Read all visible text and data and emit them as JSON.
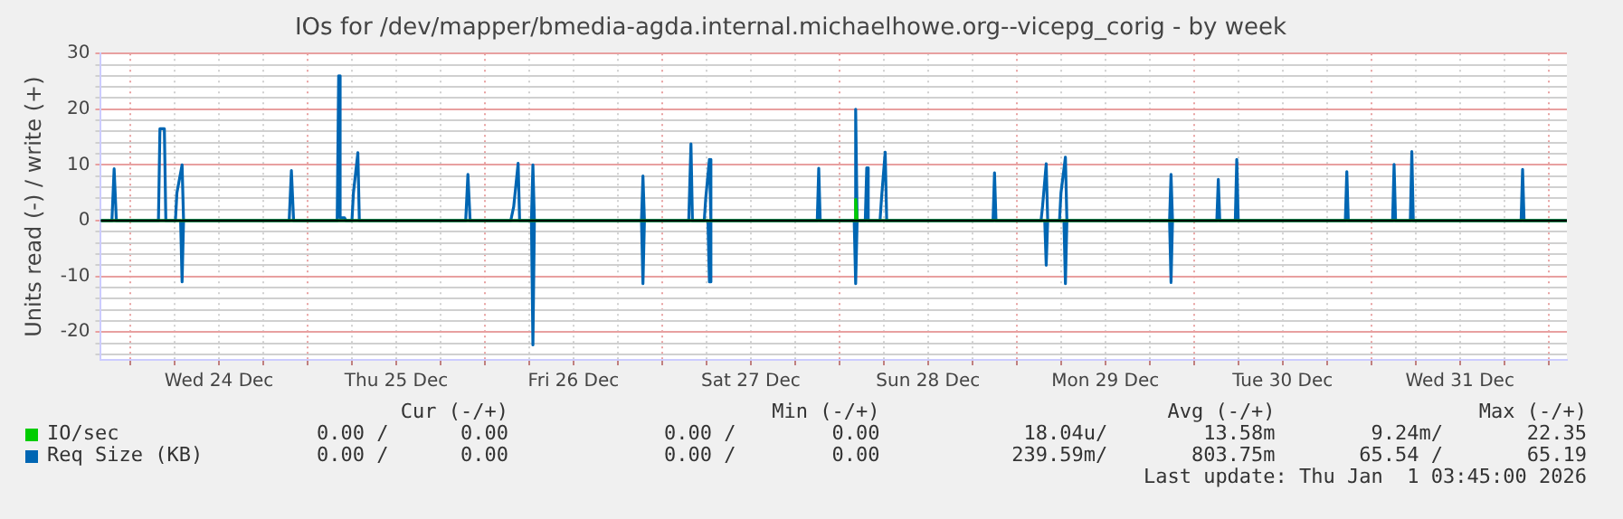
{
  "chart_data": {
    "type": "line",
    "title": "IOs for /dev/mapper/bmedia-agda.internal.michaelhowe.org--vicepg_corig - by week",
    "ylabel": "Units read (-) / write (+)",
    "xlim": [
      "2025-12-23T20:00",
      "2026-01-01T02:30"
    ],
    "xticks": [
      {
        "value": "2025-12-24T00:00",
        "label": null
      },
      {
        "value": "2025-12-24T06:00",
        "label": null
      },
      {
        "value": "2025-12-24T12:00",
        "label": "Wed 24 Dec"
      },
      {
        "value": "2025-12-24T18:00",
        "label": null
      },
      {
        "value": "2025-12-25T00:00",
        "label": null
      },
      {
        "value": "2025-12-25T06:00",
        "label": null
      },
      {
        "value": "2025-12-25T12:00",
        "label": "Thu 25 Dec"
      },
      {
        "value": "2025-12-25T18:00",
        "label": null
      },
      {
        "value": "2025-12-26T00:00",
        "label": null
      },
      {
        "value": "2025-12-26T06:00",
        "label": null
      },
      {
        "value": "2025-12-26T12:00",
        "label": "Fri 26 Dec"
      },
      {
        "value": "2025-12-26T18:00",
        "label": null
      },
      {
        "value": "2025-12-27T00:00",
        "label": null
      },
      {
        "value": "2025-12-27T06:00",
        "label": null
      },
      {
        "value": "2025-12-27T12:00",
        "label": "Sat 27 Dec"
      },
      {
        "value": "2025-12-27T18:00",
        "label": null
      },
      {
        "value": "2025-12-28T00:00",
        "label": null
      },
      {
        "value": "2025-12-28T06:00",
        "label": null
      },
      {
        "value": "2025-12-28T12:00",
        "label": "Sun 28 Dec"
      },
      {
        "value": "2025-12-28T18:00",
        "label": null
      },
      {
        "value": "2025-12-29T00:00",
        "label": null
      },
      {
        "value": "2025-12-29T06:00",
        "label": null
      },
      {
        "value": "2025-12-29T12:00",
        "label": "Mon 29 Dec"
      },
      {
        "value": "2025-12-29T18:00",
        "label": null
      },
      {
        "value": "2025-12-30T00:00",
        "label": null
      },
      {
        "value": "2025-12-30T06:00",
        "label": null
      },
      {
        "value": "2025-12-30T12:00",
        "label": "Tue 30 Dec"
      },
      {
        "value": "2025-12-30T18:00",
        "label": null
      },
      {
        "value": "2025-12-31T00:00",
        "label": null
      },
      {
        "value": "2025-12-31T06:00",
        "label": null
      },
      {
        "value": "2025-12-31T12:00",
        "label": "Wed 31 Dec"
      },
      {
        "value": "2025-12-31T18:00",
        "label": null
      },
      {
        "value": "2026-01-01T00:00",
        "label": null
      }
    ],
    "ylim": [
      -25,
      30
    ],
    "yticks": [
      {
        "value": -24,
        "label": null
      },
      {
        "value": -22,
        "label": null
      },
      -20,
      {
        "value": -18,
        "label": null
      },
      {
        "value": -16,
        "label": null
      },
      {
        "value": -14,
        "label": null
      },
      {
        "value": -12,
        "label": null
      },
      -10,
      {
        "value": -8,
        "label": null
      },
      {
        "value": -6,
        "label": null
      },
      {
        "value": -4,
        "label": null
      },
      {
        "value": -2,
        "label": null
      },
      0,
      {
        "value": 2,
        "label": null
      },
      {
        "value": 4,
        "label": null
      },
      {
        "value": 6,
        "label": null
      },
      {
        "value": 8,
        "label": null
      },
      10,
      {
        "value": 12,
        "label": null
      },
      {
        "value": 14,
        "label": null
      },
      {
        "value": 16,
        "label": null
      },
      {
        "value": 18,
        "label": null
      },
      20,
      {
        "value": 22,
        "label": null
      },
      {
        "value": 24,
        "label": null
      },
      {
        "value": 26,
        "label": null
      },
      {
        "value": 28,
        "label": null
      },
      30
    ],
    "grid": true,
    "legend": "bottom",
    "marker": "none",
    "line_style": "solid",
    "ref_lines": [
      {
        "axis": "y",
        "value": 0,
        "color": "#000000"
      }
    ],
    "series": [
      {
        "name": "IO/sec",
        "color": "#00cc00",
        "x": [
          "2025-12-23T20:00",
          "2025-12-28T02:00",
          "2025-12-28T02:12",
          "2025-12-28T02:24",
          "2026-01-01T02:30"
        ],
        "values": [
          0,
          0,
          3.8,
          0,
          0
        ]
      },
      {
        "name": "Req Size (KB)",
        "color": "#0066b3",
        "x": [
          "2025-12-23T20:00",
          "2025-12-23T21:30",
          "2025-12-23T21:48",
          "2025-12-23T22:06",
          "2025-12-24T03:48",
          "2025-12-24T04:00",
          "2025-12-24T04:36",
          "2025-12-24T04:48",
          "2025-12-24T06:06",
          "2025-12-24T06:18",
          "2025-12-24T07:00",
          "2025-12-24T07:12",
          "2025-12-24T21:30",
          "2025-12-24T21:48",
          "2025-12-24T22:06",
          "2025-12-25T04:00",
          "2025-12-25T04:12",
          "2025-12-25T04:24",
          "2025-12-25T05:00",
          "2025-12-25T05:12",
          "2025-12-25T06:00",
          "2025-12-25T06:12",
          "2025-12-25T06:48",
          "2025-12-25T07:00",
          "2025-12-25T21:24",
          "2025-12-25T21:42",
          "2025-12-25T22:00",
          "2025-12-26T03:30",
          "2025-12-26T03:54",
          "2025-12-26T04:30",
          "2025-12-26T04:42",
          "2025-12-26T06:18",
          "2025-12-26T06:30",
          "2025-12-26T06:42",
          "2025-12-26T21:12",
          "2025-12-26T21:24",
          "2025-12-26T21:36",
          "2025-12-27T03:36",
          "2025-12-27T03:54",
          "2025-12-27T04:06",
          "2025-12-27T05:42",
          "2025-12-27T05:54",
          "2025-12-27T06:24",
          "2025-12-27T06:36",
          "2025-12-27T21:00",
          "2025-12-27T21:12",
          "2025-12-27T21:24",
          "2025-12-28T02:00",
          "2025-12-28T02:12",
          "2025-12-28T02:24",
          "2025-12-28T03:30",
          "2025-12-28T03:42",
          "2025-12-28T03:54",
          "2025-12-28T05:30",
          "2025-12-28T05:42",
          "2025-12-28T06:12",
          "2025-12-28T06:24",
          "2025-12-28T20:48",
          "2025-12-28T21:00",
          "2025-12-28T21:12",
          "2025-12-29T03:18",
          "2025-12-29T03:30",
          "2025-12-29T04:00",
          "2025-12-29T04:12",
          "2025-12-29T05:48",
          "2025-12-29T06:00",
          "2025-12-29T06:36",
          "2025-12-29T06:48",
          "2025-12-29T20:42",
          "2025-12-29T20:54",
          "2025-12-29T21:06",
          "2025-12-30T03:06",
          "2025-12-30T03:18",
          "2025-12-30T03:30",
          "2025-12-30T05:36",
          "2025-12-30T05:48",
          "2025-12-30T06:00",
          "2025-12-30T20:30",
          "2025-12-30T20:42",
          "2025-12-30T20:54",
          "2025-12-31T02:54",
          "2025-12-31T03:06",
          "2025-12-31T03:18",
          "2025-12-31T05:18",
          "2025-12-31T05:30",
          "2025-12-31T05:42",
          "2025-12-31T20:18",
          "2025-12-31T20:30",
          "2025-12-31T20:42",
          "2026-01-01T02:30"
        ],
        "values": [
          0,
          0,
          9.3,
          0,
          0,
          16.5,
          16.5,
          0,
          0,
          5,
          10,
          0,
          0,
          9,
          0,
          0,
          26,
          0.5,
          0.5,
          0,
          0,
          5,
          12.2,
          0,
          0,
          8.3,
          0,
          0,
          2.5,
          10.3,
          0,
          0,
          10,
          0,
          0,
          8,
          0,
          0,
          13.8,
          0,
          0,
          4,
          11,
          0,
          0,
          9.4,
          0,
          0,
          20,
          0,
          0,
          9.5,
          0,
          0,
          4,
          12.3,
          0,
          0,
          8.6,
          0,
          0,
          2.5,
          10.2,
          0,
          0,
          5,
          11.4,
          0,
          0,
          8.3,
          0,
          0,
          7.4,
          0,
          0,
          11,
          0,
          0,
          8.8,
          0,
          0,
          10.1,
          0,
          0,
          12.4,
          0,
          0,
          9.2,
          0,
          0
        ]
      },
      {
        "color": "#0066b3",
        "x": [
          "2025-12-23T20:00",
          "2025-12-24T06:48",
          "2025-12-24T07:00",
          "2025-12-24T07:12",
          "2025-12-26T06:18",
          "2025-12-26T06:30",
          "2025-12-26T06:42",
          "2025-12-26T21:12",
          "2025-12-26T21:24",
          "2025-12-26T21:36",
          "2025-12-27T06:12",
          "2025-12-27T06:24",
          "2025-12-27T06:36",
          "2025-12-28T02:00",
          "2025-12-28T02:12",
          "2025-12-28T02:24",
          "2025-12-29T03:48",
          "2025-12-29T04:00",
          "2025-12-29T04:12",
          "2025-12-29T06:24",
          "2025-12-29T06:36",
          "2025-12-29T06:48",
          "2025-12-29T20:42",
          "2025-12-29T20:54",
          "2025-12-29T21:06",
          "2026-01-01T02:30"
        ],
        "values": [
          0,
          0,
          -11,
          0,
          0,
          -22.3,
          0,
          0,
          -11.3,
          0,
          0,
          -11,
          0,
          0,
          -11.3,
          0,
          0,
          -8,
          0,
          0,
          -11.3,
          0,
          0,
          -11.1,
          0,
          0
        ]
      }
    ],
    "annotations": [
      "Cur (-/+)                      Min (-/+)                        Avg (-/+)                 Max (-/+)",
      "0.00 /      0.00             0.00 /        0.00            18.04u/        13.58m        9.24m/       22.35",
      "0.00 /      0.00             0.00 /        0.00           239.59m/       803.75m       65.54 /       65.19",
      "Last update: Thu Jan  1 03:45:00 2026"
    ]
  }
}
